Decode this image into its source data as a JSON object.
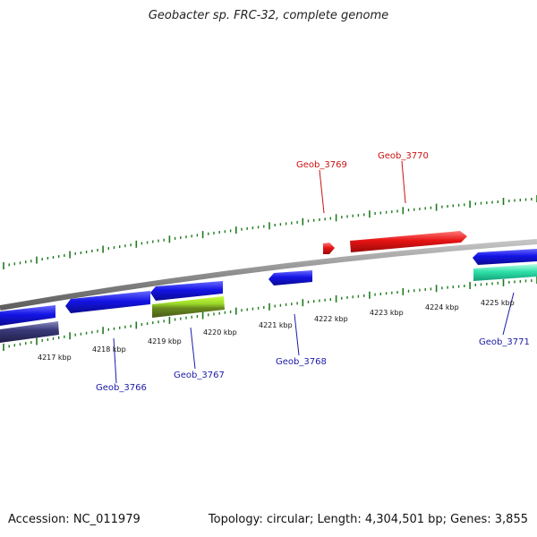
{
  "title": "Geobacter sp. FRC-32, complete genome",
  "footer": {
    "accession": "Accession: NC_011979",
    "summary": "Topology: circular; Length: 4,304,501 bp; Genes: 3,855"
  },
  "colors": {
    "backbone": "#8c8c8c",
    "tick": "#1f7a1f",
    "gene_label_blue": "#1a1aa8",
    "gene_label_red": "#cc1111",
    "blue_gene": "#1414e6",
    "red_gene": "#e61414",
    "olive_gene": "#7aa51e",
    "navy_gene": "#3a3a7a",
    "teal_gene": "#2ee0a8"
  },
  "scale_labels": [
    "4217 kbp",
    "4218 kbp",
    "4219 kbp",
    "4220 kbp",
    "4221 kbp",
    "4222 kbp",
    "4223 kbp",
    "4224 kbp",
    "4225 kbp"
  ],
  "gene_labels": [
    {
      "name": "Geob_3766",
      "color": "blue"
    },
    {
      "name": "Geob_3767",
      "color": "blue"
    },
    {
      "name": "Geob_3768",
      "color": "blue"
    },
    {
      "name": "Geob_3769",
      "color": "red"
    },
    {
      "name": "Geob_3770",
      "color": "red"
    },
    {
      "name": "Geob_3771",
      "color": "blue"
    }
  ]
}
